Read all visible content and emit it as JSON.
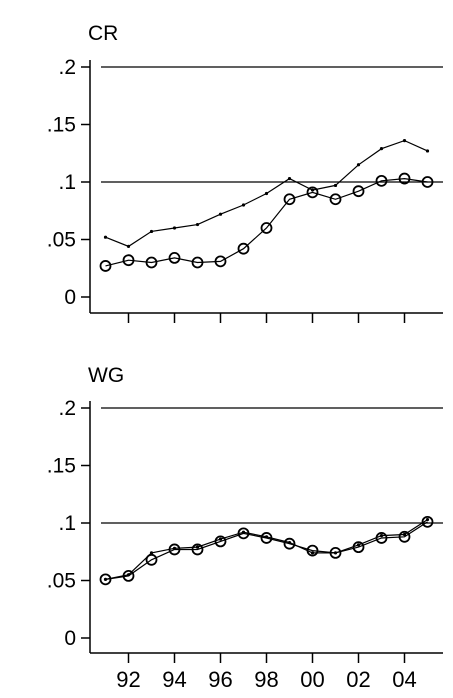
{
  "chart_data": [
    {
      "type": "line",
      "title": "CR",
      "ylim": [
        0,
        0.2
      ],
      "yticks": [
        0,
        0.05,
        0.1,
        0.15,
        0.2
      ],
      "ytick_labels": [
        "0",
        ".05",
        ".1",
        ".15",
        ".2"
      ],
      "reference_lines": [
        0.1,
        0.2
      ],
      "x": [
        1991,
        1992,
        1993,
        1994,
        1995,
        1996,
        1997,
        1998,
        1999,
        2000,
        2001,
        2002,
        2003,
        2004,
        2005
      ],
      "xlim": [
        1990.5,
        2005.5
      ],
      "xticks": [
        1992,
        1994,
        1996,
        1998,
        2000,
        2002,
        2004
      ],
      "xtick_labels": [],
      "series": [
        {
          "marker": "dot",
          "values": [
            0.052,
            0.044,
            0.057,
            0.06,
            0.063,
            0.072,
            0.08,
            0.09,
            0.103,
            0.093,
            0.097,
            0.115,
            0.129,
            0.136,
            0.127
          ]
        },
        {
          "marker": "circle",
          "values": [
            0.027,
            0.032,
            0.03,
            0.034,
            0.03,
            0.031,
            0.042,
            0.06,
            0.085,
            0.091,
            0.085,
            0.092,
            0.101,
            0.103,
            0.1
          ]
        }
      ]
    },
    {
      "type": "line",
      "title": "WG",
      "ylim": [
        0,
        0.2
      ],
      "yticks": [
        0,
        0.05,
        0.1,
        0.15,
        0.2
      ],
      "ytick_labels": [
        "0",
        ".05",
        ".1",
        ".15",
        ".2"
      ],
      "reference_lines": [
        0.1,
        0.2
      ],
      "x": [
        1991,
        1992,
        1993,
        1994,
        1995,
        1996,
        1997,
        1998,
        1999,
        2000,
        2001,
        2002,
        2003,
        2004,
        2005
      ],
      "xlim": [
        1990.5,
        2005.5
      ],
      "xticks": [
        1992,
        1994,
        1996,
        1998,
        2000,
        2002,
        2004
      ],
      "xtick_labels": [
        "92",
        "94",
        "96",
        "98",
        "00",
        "02",
        "04"
      ],
      "series": [
        {
          "marker": "dot",
          "values": [
            0.051,
            0.055,
            0.074,
            0.078,
            0.079,
            0.086,
            0.092,
            0.088,
            0.083,
            0.074,
            0.074,
            0.081,
            0.089,
            0.09,
            0.103
          ]
        },
        {
          "marker": "circle",
          "values": [
            0.051,
            0.054,
            0.068,
            0.077,
            0.077,
            0.084,
            0.091,
            0.087,
            0.082,
            0.076,
            0.074,
            0.079,
            0.087,
            0.088,
            0.101
          ]
        }
      ]
    }
  ]
}
